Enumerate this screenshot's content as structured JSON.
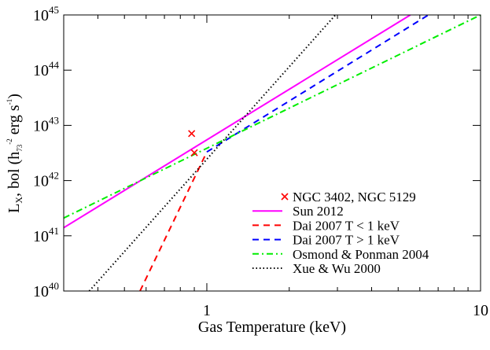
{
  "chart_data": {
    "type": "line",
    "xlabel": "Gas Temperature (keV)",
    "ylabel": {
      "main": "L",
      "sub1": "X",
      "mid": ", bol (h",
      "sub2": "73",
      "sup2": "-2",
      "mid2": " erg s",
      "sup3": "-1",
      "end": ")"
    },
    "x_scale": "log",
    "y_scale": "log",
    "xlim": [
      0.3,
      10
    ],
    "ylim": [
      1e+40,
      1e+45
    ],
    "x_ticks": [
      {
        "value": 1,
        "label": "1"
      },
      {
        "value": 10,
        "label": "10"
      }
    ],
    "y_ticks": [
      {
        "value": 40,
        "base": "10",
        "exp": "40"
      },
      {
        "value": 41,
        "base": "10",
        "exp": "41"
      },
      {
        "value": 42,
        "base": "10",
        "exp": "42"
      },
      {
        "value": 43,
        "base": "10",
        "exp": "43"
      },
      {
        "value": 44,
        "base": "10",
        "exp": "44"
      },
      {
        "value": 45,
        "base": "10",
        "exp": "45"
      }
    ],
    "grid": false,
    "legend_position": "bottom-right",
    "points": {
      "name": "NGC 3402, NGC 5129",
      "color": "#ff0000",
      "marker": "x",
      "data": [
        {
          "x": 0.88,
          "y": 7.1e+42
        },
        {
          "x": 0.9,
          "y": 3.2e+42
        }
      ]
    },
    "series": [
      {
        "name": "Sun 2012",
        "color": "#ff00ff",
        "dash": "solid",
        "x": [
          0.3,
          5.54
        ],
        "y": [
          1.4e+41,
          1e+45
        ]
      },
      {
        "name": "Dai 2007 T < 1 keV",
        "color": "#ff0000",
        "dash": "dashed",
        "x": [
          0.57,
          1.0
        ],
        "y": [
          1e+40,
          3.3e+42
        ]
      },
      {
        "name": "Dai 2007 T > 1 keV",
        "color": "#0000ff",
        "dash": "dashed",
        "x": [
          1.0,
          6.45
        ],
        "y": [
          3.3e+42,
          1e+45
        ]
      },
      {
        "name": "Osmond & Ponman 2004",
        "color": "#00ee00",
        "dash": "dashdot",
        "x": [
          0.3,
          10
        ],
        "y": [
          2.1e+41,
          1e+45
        ]
      },
      {
        "name": "Xue & Wu 2000",
        "color": "#000000",
        "dash": "dotted",
        "x": [
          0.372,
          2.95
        ],
        "y": [
          1e+40,
          1e+45
        ]
      }
    ]
  }
}
